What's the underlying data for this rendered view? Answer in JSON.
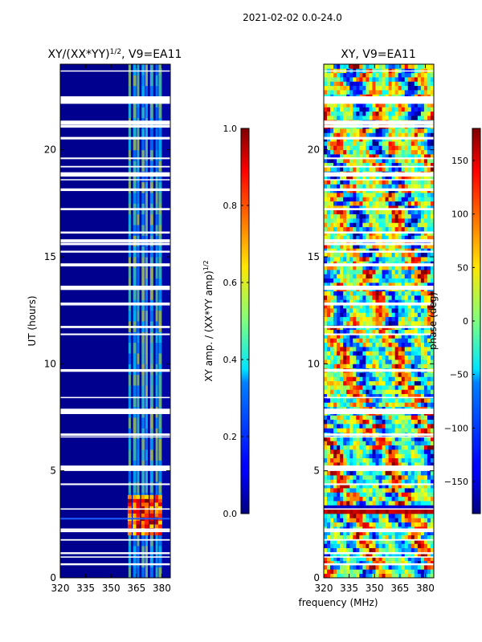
{
  "suptitle": "2021-02-02 0.0-24.0",
  "chart_data": [
    {
      "type": "heatmap",
      "title_main": "XY/(XX*YY)",
      "title_sup": "1/2",
      "title_rest": ", V9=EA11",
      "xlabel": "",
      "ylabel": "UT (hours)",
      "xlim": [
        320,
        385
      ],
      "ylim": [
        0,
        24
      ],
      "xticks": [
        320,
        335,
        350,
        365,
        380
      ],
      "yticks": [
        0,
        5,
        10,
        15,
        20
      ],
      "colormap": "jet",
      "colorbar": {
        "label_main": "XY amp. / (XX*YY amp)",
        "label_sup": "1/2",
        "range": [
          0.0,
          1.0
        ],
        "ticks": [
          "0.0",
          "0.2",
          "0.4",
          "0.6",
          "0.8",
          "1.0"
        ]
      },
      "bright_channels_MHz": [
        361,
        364,
        366,
        369,
        371,
        374,
        377,
        379
      ],
      "high_amp_interval_hours": [
        2.0,
        3.7
      ]
    },
    {
      "type": "heatmap",
      "title": "XY, V9=EA11",
      "xlabel": "frequency (MHz)",
      "ylabel": "",
      "xlim": [
        320,
        385
      ],
      "ylim": [
        0,
        24
      ],
      "xticks": [
        320,
        335,
        350,
        365,
        380
      ],
      "yticks": [
        0,
        5,
        10,
        15,
        20
      ],
      "colormap": "jet",
      "colorbar": {
        "label": "phase (deg)",
        "range": [
          -180,
          180
        ],
        "ticks": [
          "−150",
          "−100",
          "−50",
          "0",
          "50",
          "100",
          "150"
        ]
      }
    }
  ],
  "colors": {
    "low": "#00007f",
    "mid": "#7fff7f",
    "high": "#7f0000",
    "gap": "#ffffff"
  }
}
